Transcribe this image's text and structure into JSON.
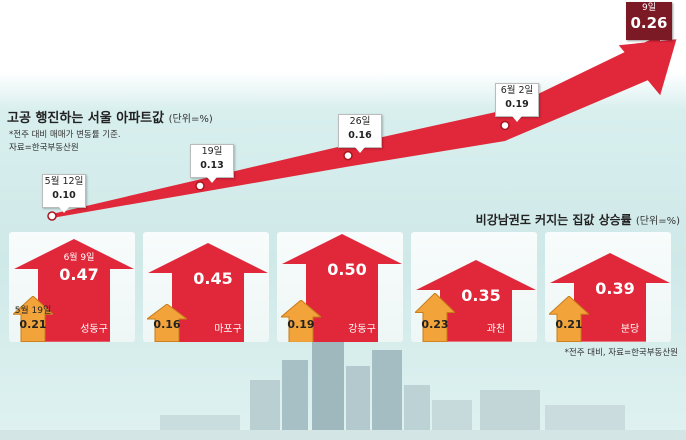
{
  "top_chart": {
    "title": "고공 행진하는 서울 아파트값",
    "unit": "(단위=%)",
    "notes": [
      "*전주 대비 매매가 변동률 기준.",
      "자료=한국부동산원"
    ],
    "points": [
      {
        "date": "5월 12일",
        "value": "0.10"
      },
      {
        "date": "19일",
        "value": "0.13"
      },
      {
        "date": "26일",
        "value": "0.16"
      },
      {
        "date": "6월 2일",
        "value": "0.19"
      },
      {
        "date": "9일",
        "value": "0.26"
      }
    ]
  },
  "bottom_chart": {
    "title": "비강남권도 커지는 집값 상승률",
    "unit": "(단위=%)",
    "note": "*전주 대비, 자료=한국부동산원",
    "regions": [
      {
        "name": "성동구",
        "before_date": "5월 19일",
        "before": "0.21",
        "after_date": "6월 9일",
        "after": "0.47"
      },
      {
        "name": "마포구",
        "before": "0.16",
        "after": "0.45"
      },
      {
        "name": "강동구",
        "before": "0.19",
        "after": "0.50"
      },
      {
        "name": "과천",
        "before": "0.23",
        "after": "0.35"
      },
      {
        "name": "분당",
        "before": "0.21",
        "after": "0.39"
      }
    ]
  },
  "chart_data": [
    {
      "type": "line",
      "title": "고공 행진하는 서울 아파트값",
      "unit": "%",
      "x": [
        "5월 12일",
        "19일",
        "26일",
        "6월 2일",
        "9일"
      ],
      "y": [
        0.1,
        0.13,
        0.16,
        0.19,
        0.26
      ]
    },
    {
      "type": "bar",
      "title": "비강남권도 커지는 집값 상승률",
      "unit": "%",
      "categories": [
        "성동구",
        "마포구",
        "강동구",
        "과천",
        "분당"
      ],
      "series": [
        {
          "name": "5월 19일",
          "values": [
            0.21,
            0.16,
            0.19,
            0.23,
            0.21
          ]
        },
        {
          "name": "6월 9일",
          "values": [
            0.47,
            0.45,
            0.5,
            0.35,
            0.39
          ]
        }
      ]
    }
  ],
  "colors": {
    "arrow_red": "#e0283a",
    "arrow_dark": "#a9161f",
    "orange": "#f2a33a",
    "final_tag": "#7b1a24",
    "sky": "#d8efee"
  }
}
